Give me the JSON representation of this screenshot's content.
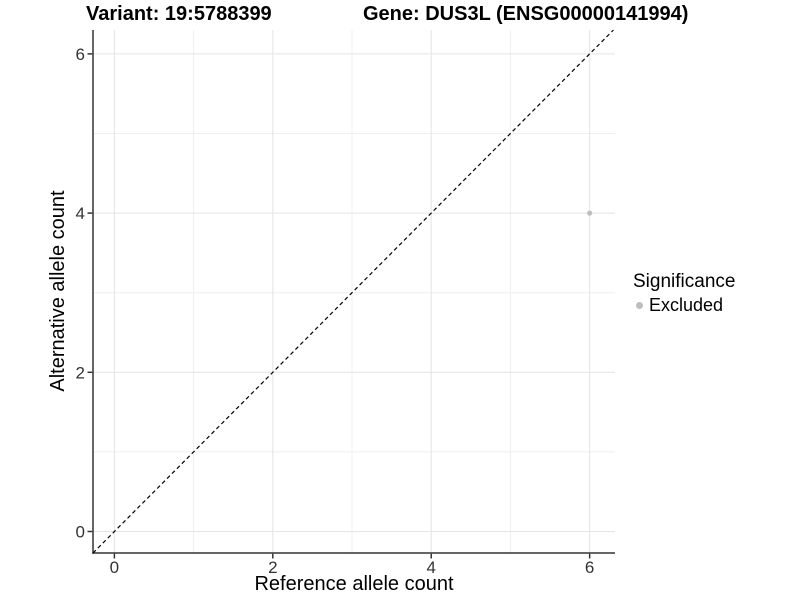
{
  "chart_data": {
    "type": "scatter",
    "title_left": "Variant: 19:5788399",
    "title_right": "Gene: DUS3L (ENSG00000141994)",
    "xlabel": "Reference allele count",
    "ylabel": "Alternative allele count",
    "xlim": [
      -0.27,
      6.32
    ],
    "ylim": [
      -0.27,
      6.3
    ],
    "x_major_ticks": [
      0,
      2,
      4,
      6
    ],
    "y_major_ticks": [
      0,
      2,
      4,
      6
    ],
    "x_minor_ticks": [
      1,
      3,
      5
    ],
    "y_minor_ticks": [
      1,
      3,
      5
    ],
    "grid": true,
    "points": [
      {
        "x": 6,
        "y": 4,
        "series": "Excluded"
      }
    ],
    "reference_line": {
      "type": "identity",
      "style": "dashed",
      "color": "#000000"
    },
    "legend": {
      "title": "Significance",
      "position": "right",
      "entries": [
        {
          "label": "Excluded",
          "color": "#bebebe"
        }
      ]
    },
    "colors": {
      "point": "#bebebe",
      "axis_line": "#333333",
      "tick_label": "#333333",
      "grid_major": "#e4e4e4",
      "grid_minor": "#efefef",
      "background": "#ffffff"
    }
  }
}
